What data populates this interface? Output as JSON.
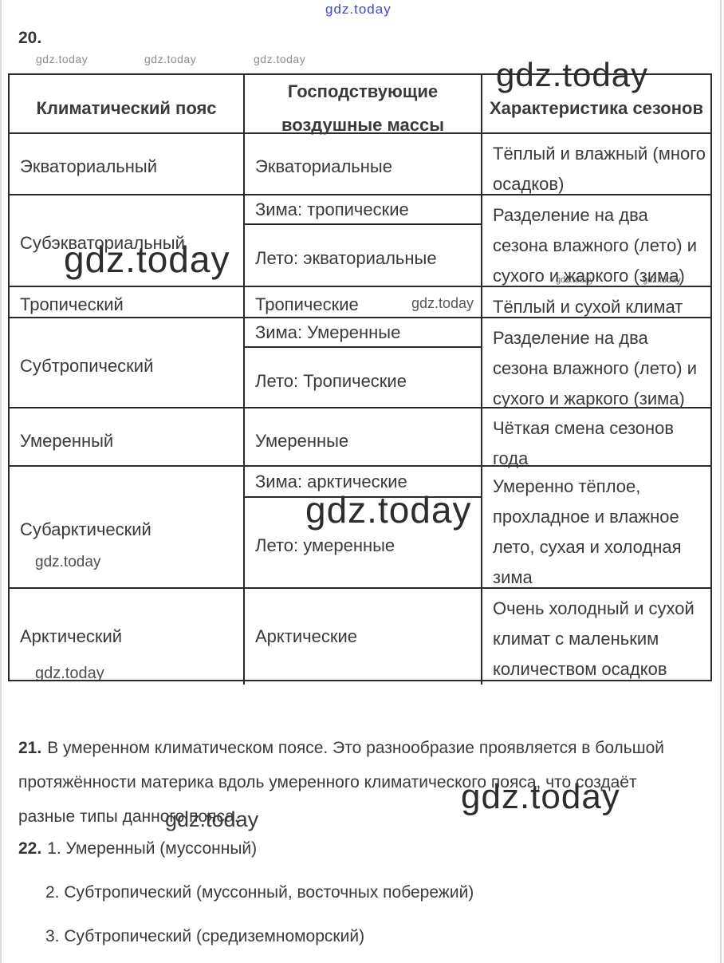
{
  "watermark_text": "gdz.today",
  "colors": {
    "watermark_blue": "#4646c8",
    "watermark_gray": "#8c8c8c",
    "text": "#3a3a3a",
    "table_border": "#2b2b2b"
  },
  "heading_20": "20.",
  "table": {
    "headers": [
      "Климатический пояс",
      "Господствующие воздушные массы",
      "Характеристика сезонов"
    ],
    "rows": [
      {
        "zone": "Экваториальный",
        "masses": [
          "Экваториальные"
        ],
        "seasons_lines": [
          "Тёплый и влажный (много",
          "осадков)"
        ]
      },
      {
        "zone": "Субэкваториальный",
        "masses": [
          "Зима: тропические",
          "Лето: экваториальные"
        ],
        "seasons_lines": [
          "Разделение на два",
          "сезона влажного (лето) и",
          "сухого и жаркого (зима)"
        ]
      },
      {
        "zone": "Тропический",
        "masses": [
          "Тропические"
        ],
        "seasons_lines": [
          "Тёплый и сухой климат"
        ]
      },
      {
        "zone": "Субтропический",
        "masses": [
          "Зима: Умеренные",
          "Лето: Тропические"
        ],
        "seasons_lines": [
          "Разделение на два",
          "сезона влажного (лето) и",
          "сухого и жаркого (зима)"
        ]
      },
      {
        "zone": "Умеренный",
        "masses": [
          "Умеренные"
        ],
        "seasons_lines": [
          "Чёткая смена сезонов",
          "года"
        ]
      },
      {
        "zone": "Субарктический",
        "masses": [
          "Зима: арктические",
          "Лето: умеренные"
        ],
        "seasons_lines": [
          "Умеренно тёплое,",
          "прохладное и влажное",
          "лето, сухая и холодная",
          "зима"
        ]
      },
      {
        "zone": "Арктический",
        "masses": [
          "Арктические"
        ],
        "seasons_lines": [
          "Очень холодный и сухой",
          "климат с маленьким",
          "количеством осадков"
        ]
      }
    ]
  },
  "answer_21": {
    "number": "21.",
    "lines": [
      "В умеренном климатическом поясе. Это разнообразие проявляется в большой",
      "протяжённости материка вдоль умеренного климатического пояса, что создаёт",
      "разные типы данного пояса."
    ]
  },
  "answer_22": {
    "number": "22.",
    "items": [
      "1. Умеренный (муссонный)",
      "2. Субтропический (муссонный, восточных побережий)",
      "3. Субтропический (средиземноморский)"
    ]
  }
}
